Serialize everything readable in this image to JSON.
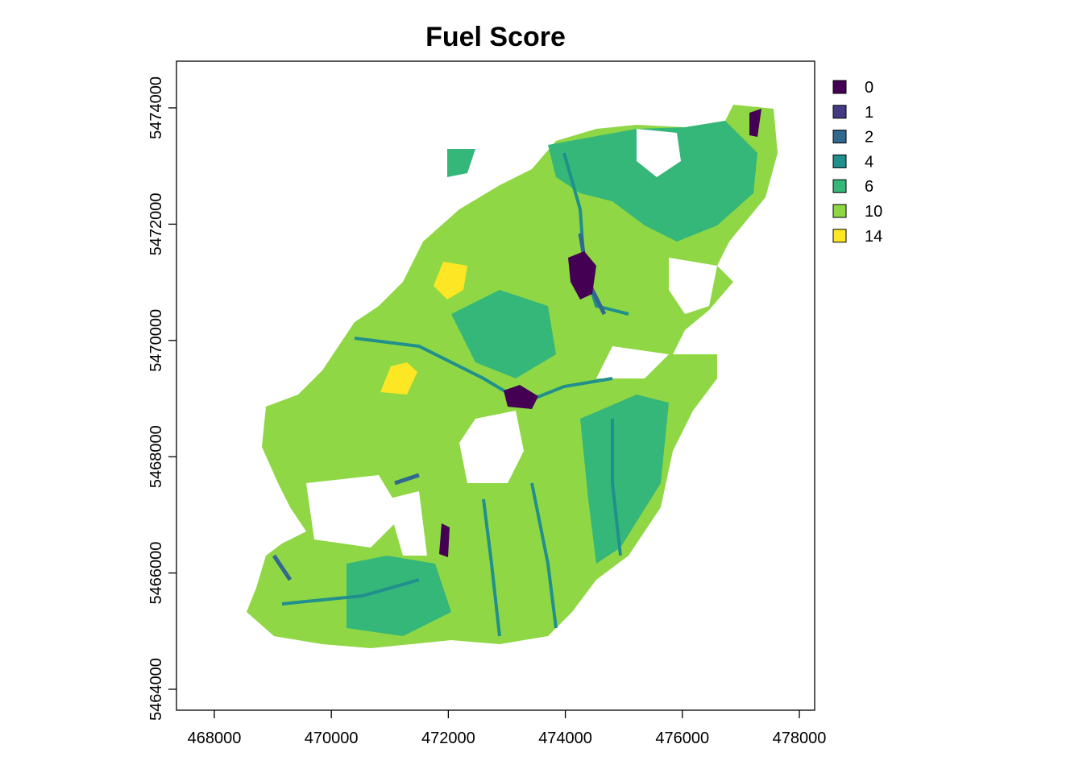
{
  "chart_data": {
    "type": "raster-map",
    "title": "Fuel Score",
    "xlim": [
      467353,
      478262
    ],
    "ylim": [
      5463640,
      5474803
    ],
    "xticks": [
      468000,
      470000,
      472000,
      474000,
      476000,
      478000
    ],
    "yticks": [
      5464000,
      5466000,
      5468000,
      5470000,
      5472000,
      5474000
    ],
    "legend": [
      {
        "value": 0,
        "color": "#440154"
      },
      {
        "value": 1,
        "color": "#443A83"
      },
      {
        "value": 2,
        "color": "#31688E"
      },
      {
        "value": 4,
        "color": "#21908C"
      },
      {
        "value": 6,
        "color": "#35B779"
      },
      {
        "value": 10,
        "color": "#8FD744"
      },
      {
        "value": 14,
        "color": "#FDE725"
      }
    ]
  }
}
